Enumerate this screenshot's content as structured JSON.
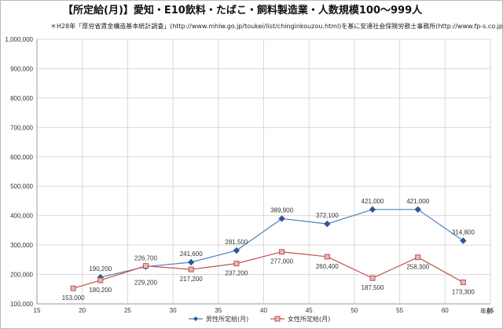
{
  "chart_data": {
    "type": "line",
    "title": "【所定給(月)】愛知・E10飲料・たばこ・飼料製造業・人数規模100～999人",
    "subtitle": "＊H28年「厚労省賃金構造基本統計調査」(http://www.mhlw.go.jp/toukei/list/chinginkouzou.html)を基に安達社会保険労務士事務所(http://www.fp-s.co.jp)が作成",
    "xlabel": "年齢",
    "ylabel": "",
    "xlim": [
      15,
      65
    ],
    "ylim": [
      100000,
      1000000
    ],
    "xticks": [
      "15",
      "20",
      "25",
      "30",
      "35",
      "40",
      "45",
      "50",
      "55",
      "60",
      "65"
    ],
    "yticks": [
      "100,000",
      "200,000",
      "300,000",
      "400,000",
      "500,000",
      "600,000",
      "700,000",
      "800,000",
      "900,000",
      "1,000,000"
    ],
    "grid": true,
    "legend_position": "bottom",
    "series": [
      {
        "name": "男性所定給(月)",
        "color": "#4f81bd",
        "marker": "diamond",
        "x": [
          22,
          27,
          32,
          37,
          42,
          47,
          52,
          57,
          62
        ],
        "values": [
          190200,
          226700,
          241600,
          281500,
          389900,
          372100,
          421000,
          421000,
          314800
        ],
        "labels": [
          "190,200",
          "226,700",
          "241,600",
          "281,500",
          "389,900",
          "372,100",
          "421,000",
          "421,000",
          "314,800"
        ]
      },
      {
        "name": "女性所定給(月)",
        "color": "#c0504d",
        "marker": "square",
        "x": [
          19,
          22,
          27,
          32,
          37,
          42,
          47,
          52,
          57,
          62
        ],
        "values": [
          153000,
          180200,
          229200,
          217200,
          237200,
          277000,
          260400,
          187500,
          258300,
          173300
        ],
        "labels": [
          "153,000",
          "180,200",
          "229,200",
          "217,200",
          "237,200",
          "277,000",
          "260,400",
          "187,500",
          "258,300",
          "173,300"
        ]
      }
    ]
  }
}
